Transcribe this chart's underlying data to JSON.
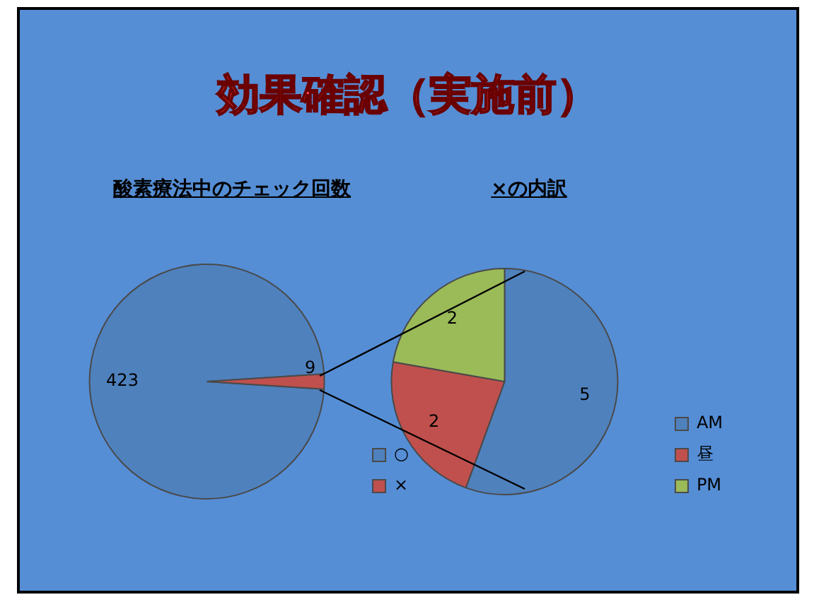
{
  "chart_data": [
    {
      "type": "pie",
      "title": "効果確認（実施前）",
      "subtitle": "酸素療法中のチェック回数",
      "categories": [
        "○",
        "×"
      ],
      "values": [
        423,
        9
      ],
      "colors": [
        "#4f81bd",
        "#c0504d"
      ],
      "data_labels": true,
      "legend": "bottom right"
    },
    {
      "type": "pie",
      "title": "×の内訳",
      "categories": [
        "AM",
        "昼",
        "PM"
      ],
      "values": [
        5,
        2,
        2
      ],
      "colors": [
        "#4f81bd",
        "#c0504d",
        "#9bbb59"
      ],
      "data_labels": true,
      "legend": "bottom right"
    }
  ]
}
